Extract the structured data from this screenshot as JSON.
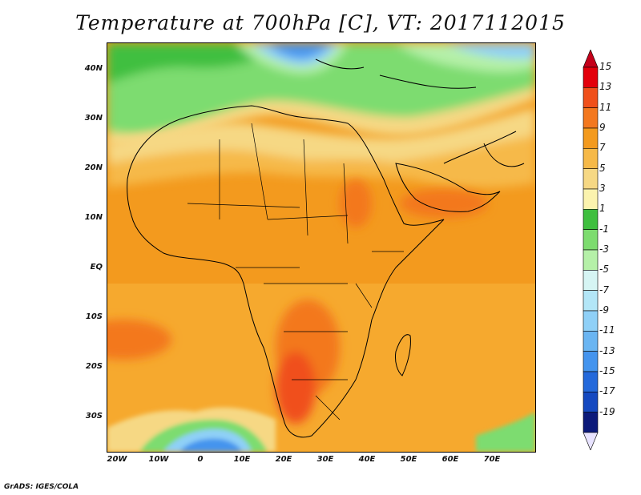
{
  "title": "Temperature at 700hPa [C], VT: 2017112015",
  "credit": "GrADS: IGES/COLA",
  "map": {
    "lon_labels": [
      "20W",
      "10W",
      "0",
      "10E",
      "20E",
      "30E",
      "40E",
      "50E",
      "60E",
      "70E"
    ],
    "lat_labels": [
      "40N",
      "30N",
      "20N",
      "10N",
      "EQ",
      "10S",
      "20S",
      "30S"
    ]
  },
  "colorbar": {
    "labels": [
      "15",
      "13",
      "11",
      "9",
      "7",
      "5",
      "3",
      "1",
      "-1",
      "-3",
      "-5",
      "-7",
      "-9",
      "-11",
      "-13",
      "-15",
      "-17",
      "-19"
    ],
    "colors": [
      "#e3000b",
      "#f0501b",
      "#f3781f",
      "#f39a1e",
      "#f6b948",
      "#f6d884",
      "#fbf3ae",
      "#3fbf3f",
      "#7ddc6f",
      "#b5f0a8",
      "#d6f5f4",
      "#b3e6f7",
      "#8fd0f7",
      "#6ab5f2",
      "#4494ee",
      "#2469db",
      "#1549c0",
      "#0c1a7a"
    ],
    "top_arrow": "#c4001a",
    "bottom_arrow": "#e8e3ff"
  }
}
